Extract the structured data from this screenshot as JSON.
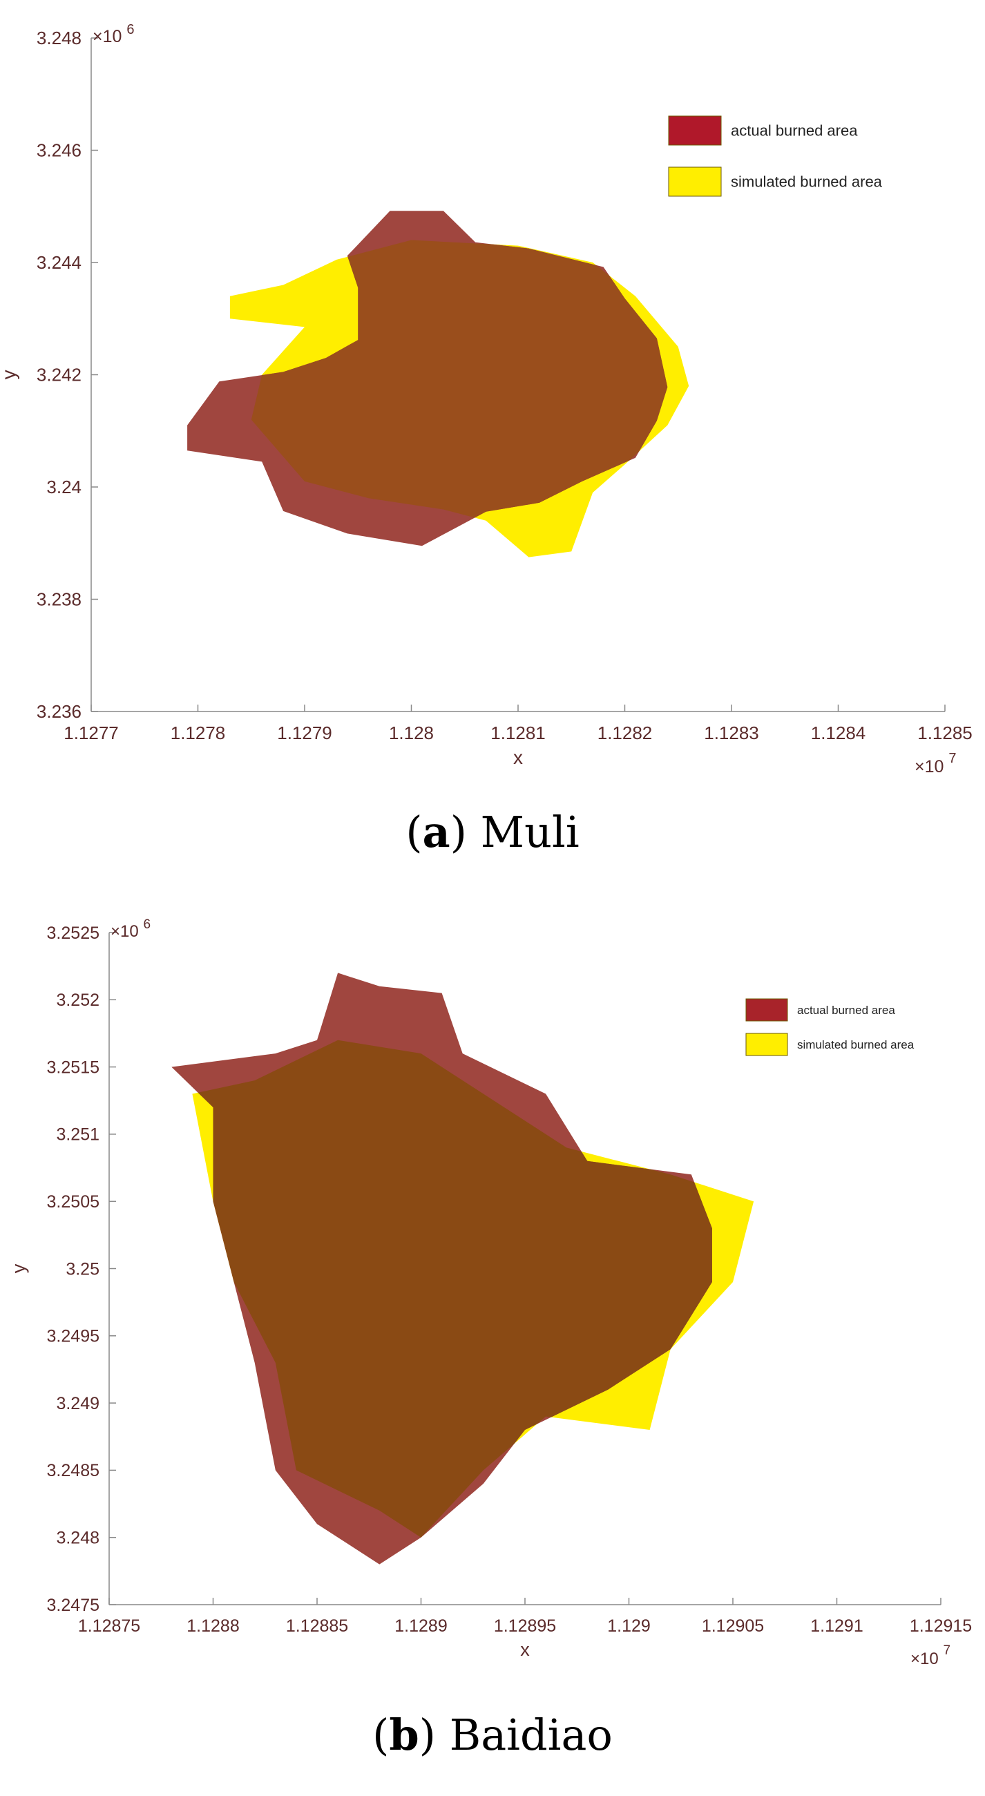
{
  "figures": [
    {
      "caption_letter": "a",
      "caption_name": "Muli",
      "chart_data": {
        "type": "scatter",
        "title": "",
        "xlabel": "x",
        "ylabel": "y",
        "x_exponent": "×10",
        "x_exponent_power": "7",
        "y_exponent": "×10",
        "y_exponent_power": "6",
        "xlim": [
          1.1277,
          1.1285
        ],
        "ylim": [
          3.236,
          3.248
        ],
        "x_ticks": [
          1.1277,
          1.1278,
          1.1279,
          1.128,
          1.1281,
          1.1282,
          1.1283,
          1.1284,
          1.1285
        ],
        "x_tick_labels": [
          "1.1277",
          "1.1278",
          "1.1279",
          "1.128",
          "1.1281",
          "1.1282",
          "1.1283",
          "1.1284",
          "1.1285"
        ],
        "y_ticks": [
          3.236,
          3.238,
          3.24,
          3.242,
          3.244,
          3.246,
          3.248
        ],
        "y_tick_labels": [
          "3.236",
          "3.238",
          "3.24",
          "3.242",
          "3.244",
          "3.246",
          "3.248"
        ],
        "legend_position": "top-right",
        "colors": {
          "actual": "#a0463f",
          "simulated": "#ffee00",
          "overlap": "#9a4e1c"
        },
        "series": [
          {
            "name": "actual burned area",
            "color": "#b0182a",
            "polygon": [
              [
                1.12798,
                3.24492
              ],
              [
                1.12803,
                3.24492
              ],
              [
                1.12806,
                3.24436
              ],
              [
                1.12811,
                3.24425
              ],
              [
                1.12818,
                3.24392
              ],
              [
                1.1282,
                3.24336
              ],
              [
                1.12823,
                3.24265
              ],
              [
                1.12824,
                3.24178
              ],
              [
                1.12823,
                3.24118
              ],
              [
                1.12821,
                3.24052
              ],
              [
                1.12816,
                3.2401
              ],
              [
                1.12812,
                3.23972
              ],
              [
                1.12807,
                3.23956
              ],
              [
                1.12801,
                3.23895
              ],
              [
                1.12794,
                3.23917
              ],
              [
                1.12788,
                3.23957
              ],
              [
                1.12786,
                3.24045
              ],
              [
                1.12779,
                3.24065
              ],
              [
                1.12779,
                3.2411
              ],
              [
                1.12782,
                3.24188
              ],
              [
                1.12788,
                3.24205
              ],
              [
                1.12792,
                3.2423
              ],
              [
                1.12795,
                3.24262
              ],
              [
                1.12795,
                3.24355
              ],
              [
                1.12794,
                3.24412
              ]
            ]
          },
          {
            "name": "simulated burned area",
            "color": "#ffee00",
            "polygon": [
              [
                1.128,
                3.2444
              ],
              [
                1.1281,
                3.2443
              ],
              [
                1.12817,
                3.244
              ],
              [
                1.12821,
                3.2434
              ],
              [
                1.12825,
                3.2425
              ],
              [
                1.12826,
                3.2418
              ],
              [
                1.12824,
                3.2411
              ],
              [
                1.1282,
                3.2404
              ],
              [
                1.12817,
                3.2399
              ],
              [
                1.12815,
                3.23885
              ],
              [
                1.12811,
                3.23875
              ],
              [
                1.12807,
                3.2394
              ],
              [
                1.12803,
                3.2396
              ],
              [
                1.12796,
                3.2398
              ],
              [
                1.1279,
                3.2401
              ],
              [
                1.12785,
                3.2412
              ],
              [
                1.12786,
                3.242
              ],
              [
                1.1279,
                3.24285
              ],
              [
                1.12783,
                3.243
              ],
              [
                1.12783,
                3.2434
              ],
              [
                1.12788,
                3.2436
              ],
              [
                1.12793,
                3.24405
              ]
            ]
          }
        ]
      }
    },
    {
      "caption_letter": "b",
      "caption_name": "Baidiao",
      "chart_data": {
        "type": "scatter",
        "title": "",
        "xlabel": "x",
        "ylabel": "y",
        "x_exponent": "×10",
        "x_exponent_power": "7",
        "y_exponent": "×10",
        "y_exponent_power": "6",
        "xlim": [
          1.12875,
          1.12915
        ],
        "ylim": [
          3.2475,
          3.2525
        ],
        "x_ticks": [
          1.12875,
          1.1288,
          1.12885,
          1.1289,
          1.12895,
          1.129,
          1.12905,
          1.1291,
          1.12915
        ],
        "x_tick_labels": [
          "1.12875",
          "1.1288",
          "1.12885",
          "1.1289",
          "1.12895",
          "1.129",
          "1.12905",
          "1.1291",
          "1.12915"
        ],
        "y_ticks": [
          3.2475,
          3.248,
          3.2485,
          3.249,
          3.2495,
          3.25,
          3.2505,
          3.251,
          3.2515,
          3.252,
          3.2525
        ],
        "y_tick_labels": [
          "3.2475",
          "3.248",
          "3.2485",
          "3.249",
          "3.2495",
          "3.25",
          "3.2505",
          "3.251",
          "3.2515",
          "3.252",
          "3.2525"
        ],
        "legend_position": "top-right",
        "colors": {
          "actual": "#a0463f",
          "simulated": "#ffee00",
          "overlap": "#8a4a14"
        },
        "series": [
          {
            "name": "actual burned area",
            "color": "#a8232a",
            "polygon": [
              [
                1.12886,
                3.2522
              ],
              [
                1.12888,
                3.2521
              ],
              [
                1.12891,
                3.25205
              ],
              [
                1.12892,
                3.2516
              ],
              [
                1.12896,
                3.2513
              ],
              [
                1.12898,
                3.2508
              ],
              [
                1.12903,
                3.2507
              ],
              [
                1.12904,
                3.2503
              ],
              [
                1.12904,
                3.2499
              ],
              [
                1.12902,
                3.2494
              ],
              [
                1.12899,
                3.2491
              ],
              [
                1.12895,
                3.2488
              ],
              [
                1.12893,
                3.2484
              ],
              [
                1.1289,
                3.248
              ],
              [
                1.12888,
                3.2478
              ],
              [
                1.12885,
                3.2481
              ],
              [
                1.12883,
                3.2485
              ],
              [
                1.12882,
                3.2493
              ],
              [
                1.12881,
                3.2499
              ],
              [
                1.1288,
                3.2505
              ],
              [
                1.1288,
                3.2512
              ],
              [
                1.12878,
                3.2515
              ],
              [
                1.12883,
                3.2516
              ],
              [
                1.12885,
                3.2517
              ]
            ]
          },
          {
            "name": "simulated burned area",
            "color": "#ffee00",
            "polygon": [
              [
                1.12886,
                3.2517
              ],
              [
                1.1289,
                3.2516
              ],
              [
                1.12894,
                3.2512
              ],
              [
                1.12897,
                3.2509
              ],
              [
                1.12902,
                3.2507
              ],
              [
                1.12906,
                3.2505
              ],
              [
                1.12905,
                3.2499
              ],
              [
                1.12902,
                3.2494
              ],
              [
                1.12901,
                3.2488
              ],
              [
                1.12896,
                3.2489
              ],
              [
                1.12893,
                3.2485
              ],
              [
                1.1289,
                3.248
              ],
              [
                1.12888,
                3.2482
              ],
              [
                1.12884,
                3.2485
              ],
              [
                1.12883,
                3.2493
              ],
              [
                1.12881,
                3.2499
              ],
              [
                1.1288,
                3.2505
              ],
              [
                1.12879,
                3.2513
              ],
              [
                1.12882,
                3.2514
              ]
            ]
          }
        ]
      }
    }
  ]
}
